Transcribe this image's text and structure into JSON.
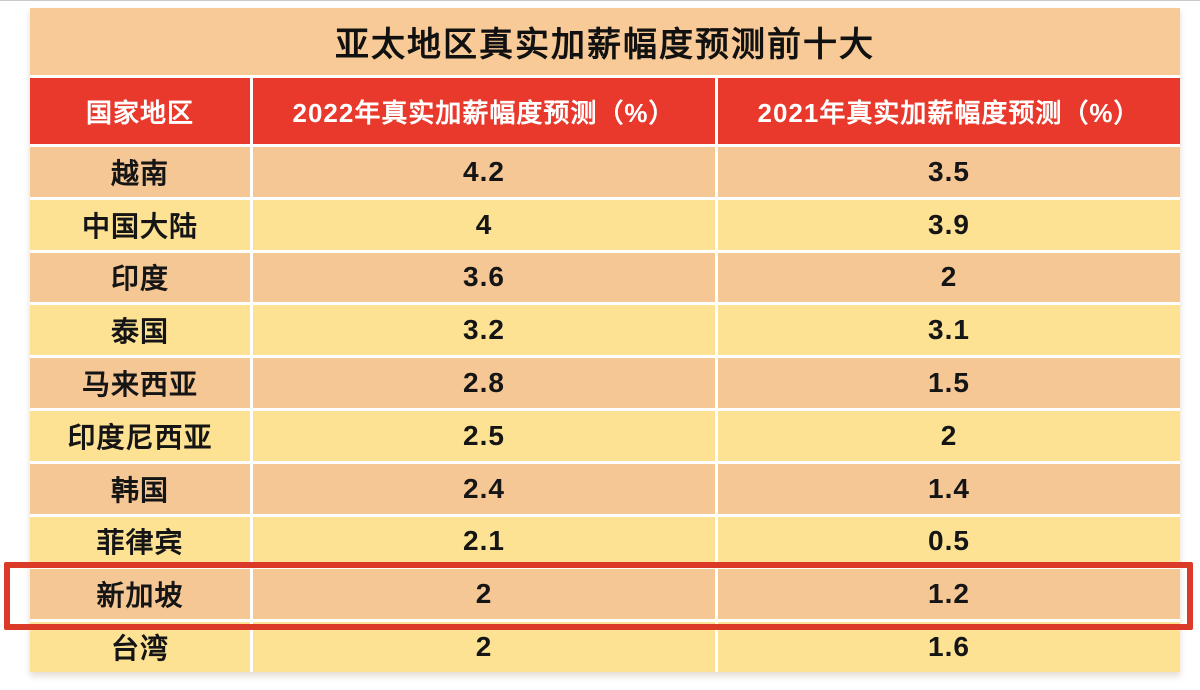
{
  "title": "亚太地区真实加薪幅度预测前十大",
  "chart_data": {
    "type": "table",
    "title": "亚太地区真实加薪幅度预测前十大",
    "columns": [
      "国家地区",
      "2022年真实加薪幅度预测（%）",
      "2021年真实加薪幅度预测（%）"
    ],
    "rows": [
      {
        "region": "越南",
        "forecast_2022": "4.2",
        "forecast_2021": "3.5",
        "highlight": false
      },
      {
        "region": "中国大陆",
        "forecast_2022": "4",
        "forecast_2021": "3.9",
        "highlight": false
      },
      {
        "region": "印度",
        "forecast_2022": "3.6",
        "forecast_2021": "2",
        "highlight": false
      },
      {
        "region": "泰国",
        "forecast_2022": "3.2",
        "forecast_2021": "3.1",
        "highlight": false
      },
      {
        "region": "马来西亚",
        "forecast_2022": "2.8",
        "forecast_2021": "1.5",
        "highlight": false
      },
      {
        "region": "印度尼西亚",
        "forecast_2022": "2.5",
        "forecast_2021": "2",
        "highlight": false
      },
      {
        "region": "韩国",
        "forecast_2022": "2.4",
        "forecast_2021": "1.4",
        "highlight": false
      },
      {
        "region": "菲律宾",
        "forecast_2022": "2.1",
        "forecast_2021": "0.5",
        "highlight": false
      },
      {
        "region": "新加坡",
        "forecast_2022": "2",
        "forecast_2021": "1.2",
        "highlight": true
      },
      {
        "region": "台湾",
        "forecast_2022": "2",
        "forecast_2021": "1.6",
        "highlight": false
      }
    ],
    "highlighted_row": "新加坡",
    "legend_position": "none",
    "grid": "white-separators"
  },
  "colors": {
    "header_bg": "#E8392C",
    "header_text": "#FFFFFF",
    "title_bg": "#F8CA97",
    "row_odd_bg": "#F5C795",
    "row_even_bg": "#FDE294",
    "highlight_border": "#DC3A28",
    "cell_text": "#151515"
  }
}
